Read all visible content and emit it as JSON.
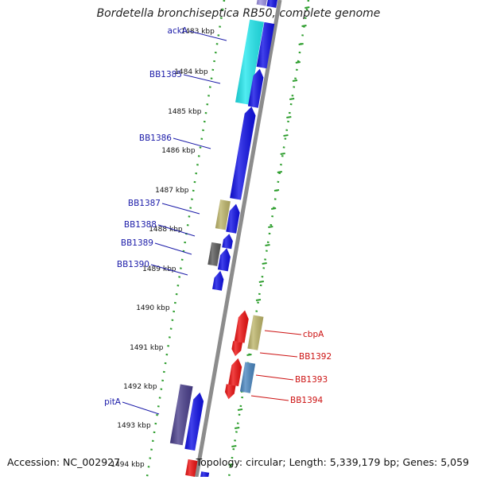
{
  "title": "Bordetella bronchiseptica RB50, complete genome",
  "footer": {
    "accession": "Accession: NC_002927",
    "topology": "Topology: circular; Length: 5,339,179 bp; Genes: 5,059"
  },
  "ruler_labels": [
    "1483 kbp",
    "1484 kbp",
    "1485 kbp",
    "1486 kbp",
    "1487 kbp",
    "1488 kbp",
    "1489 kbp",
    "1490 kbp",
    "1491 kbp",
    "1492 kbp",
    "1493 kbp",
    "1494 kbp"
  ],
  "colors": {
    "backbone": "#8c8c8c",
    "guide": "#2e9e2e",
    "forward_label": "#1a1aa8",
    "reverse_label": "#cc1111",
    "blue": "#1010e6",
    "cyan": "#22e8ee",
    "khaki": "#bdb56a",
    "darkgray": "#5a5a5a",
    "red": "#ee1111",
    "steelblue": "#4a86c0",
    "purple": "#4a3f8c",
    "lavender": "#9a8fe0"
  },
  "genes": [
    {
      "label": "ackA",
      "strand": "forward"
    },
    {
      "label": "BB1385",
      "strand": "forward"
    },
    {
      "label": "BB1386",
      "strand": "forward"
    },
    {
      "label": "BB1387",
      "strand": "forward"
    },
    {
      "label": "BB1388",
      "strand": "forward"
    },
    {
      "label": "BB1389",
      "strand": "forward"
    },
    {
      "label": "BB1390",
      "strand": "forward"
    },
    {
      "label": "cbpA",
      "strand": "reverse"
    },
    {
      "label": "BB1392",
      "strand": "reverse"
    },
    {
      "label": "BB1393",
      "strand": "reverse"
    },
    {
      "label": "BB1394",
      "strand": "reverse"
    },
    {
      "label": "pitA",
      "strand": "forward"
    }
  ]
}
